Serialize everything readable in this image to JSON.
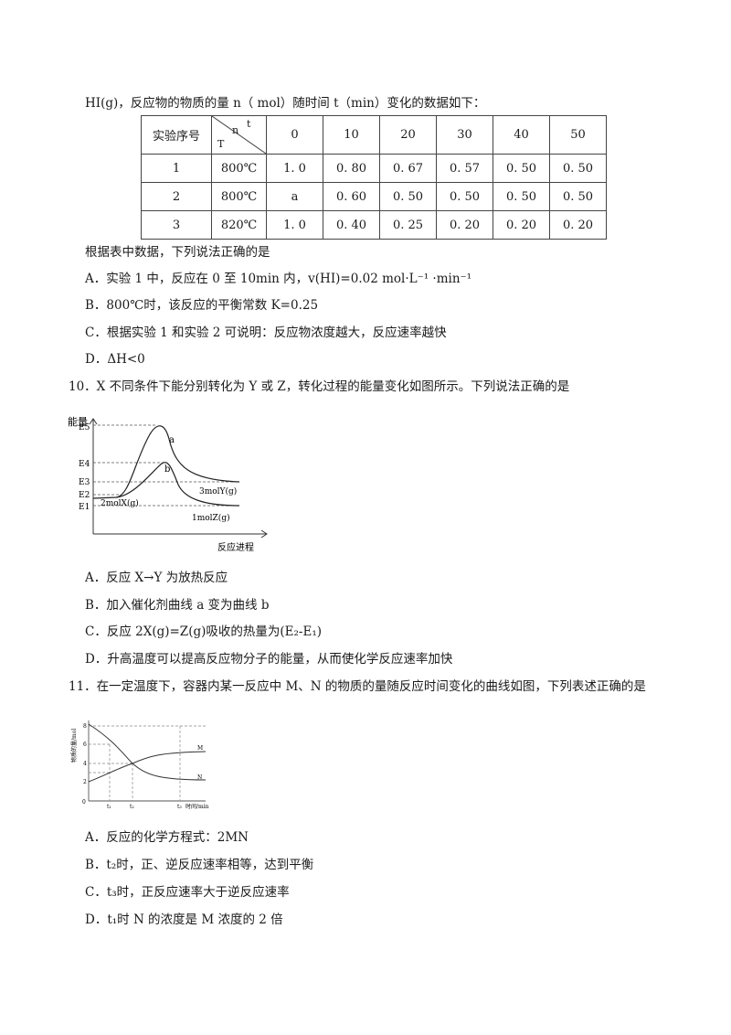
{
  "intro": "HI(g)，反应物的物质的量 n（ mol）随时间 t（min）变化的数据如下：",
  "table": {
    "header0": "实验序号",
    "diag_t": "t",
    "diag_n": "n",
    "diag_T": "T",
    "times": [
      "0",
      "10",
      "20",
      "30",
      "40",
      "50"
    ],
    "rows": [
      {
        "id": "1",
        "temp": "800℃",
        "values": [
          "1. 0",
          "0. 80",
          "0. 67",
          "0. 57",
          "0. 50",
          "0. 50"
        ]
      },
      {
        "id": "2",
        "temp": "800℃",
        "values": [
          "a",
          "0. 60",
          "0. 50",
          "0. 50",
          "0. 50",
          "0. 50"
        ]
      },
      {
        "id": "3",
        "temp": "820℃",
        "values": [
          "1. 0",
          "0. 40",
          "0. 25",
          "0. 20",
          "0. 20",
          "0. 20"
        ]
      }
    ]
  },
  "q9": {
    "stem": "根据表中数据，下列说法正确的是",
    "a": "A．实验 1 中，反应在 0 至 10min 内，v(HI)=0.02 mol·L⁻¹ ·min⁻¹",
    "b": "B．800℃时，该反应的平衡常数 K=0.25",
    "c": "C．根据实验 1 和实验 2 可说明：反应物浓度越大，反应速率越快",
    "d": "D．ΔH<0"
  },
  "q10": {
    "stem": "10．X 不同条件下能分别转化为 Y 或 Z，转化过程的能量变化如图所示。下列说法正确的是",
    "figure": {
      "ylabel": "能量",
      "xlabel": "反应进程",
      "levels": [
        "E5",
        "E4",
        "E3",
        "E2",
        "E1"
      ],
      "curve_a": "a",
      "curve_b": "b",
      "reactant": "2molX(g)",
      "product_y": "3molY(g)",
      "product_z": "1molZ(g)"
    },
    "a": "A．反应 X→Y 为放热反应",
    "b": "B．加入催化剂曲线 a 变为曲线 b",
    "c": "C．反应 2X(g)=Z(g)吸收的热量为(E₂-E₁)",
    "d": "D．升高温度可以提高反应物分子的能量，从而使化学反应速率加快"
  },
  "q11": {
    "stem": "11．在一定温度下，容器内某一反应中 M、N 的物质的量随反应时间变化的曲线如图，下列表述正确的是",
    "figure": {
      "ylabel": "物质的量/mol",
      "xlabel": "时间/min",
      "origin": "0",
      "yticks": [
        "2",
        "4",
        "6",
        "8"
      ],
      "xticks": [
        "t₁",
        "t₂",
        "t₃"
      ],
      "series_m": "M",
      "series_n": "N"
    },
    "a": "A．反应的化学方程式：2MN",
    "b": "B．t₂时，正、逆反应速率相等，达到平衡",
    "c": "C．t₃时，正反应速率大于逆反应速率",
    "d": "D．t₁时 N 的浓度是 M 浓度的 2 倍"
  }
}
